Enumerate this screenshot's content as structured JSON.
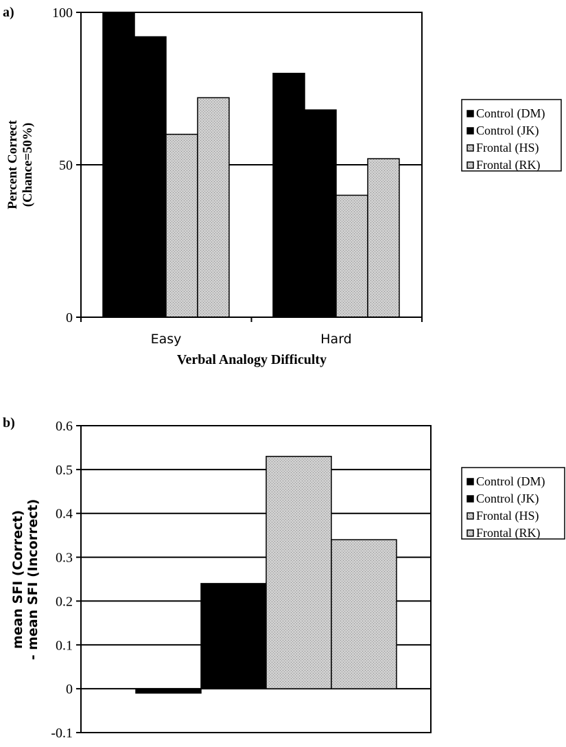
{
  "chart_data": [
    {
      "panel_label": "a)",
      "type": "bar",
      "categories": [
        "Easy",
        "Hard"
      ],
      "series": [
        {
          "name": "Control (DM)",
          "values": [
            100,
            80
          ]
        },
        {
          "name": "Control (JK)",
          "values": [
            92,
            68
          ]
        },
        {
          "name": "Frontal (HS)",
          "values": [
            60,
            40
          ]
        },
        {
          "name": "Frontal (RK)",
          "values": [
            72,
            52
          ]
        }
      ],
      "xlabel": "Verbal Analogy Difficulty",
      "ylabel_lines": [
        "Percent Correct",
        "(Chance=50%)"
      ],
      "ylim": [
        0,
        100
      ],
      "yticks": [
        "0",
        "50",
        "100"
      ],
      "gridlines": [
        50
      ],
      "legend_position": "right"
    },
    {
      "panel_label": "b)",
      "type": "bar",
      "categories": [
        ""
      ],
      "series": [
        {
          "name": "Control (DM)",
          "values": [
            -0.01
          ]
        },
        {
          "name": "Control (JK)",
          "values": [
            0.24
          ]
        },
        {
          "name": "Frontal (HS)",
          "values": [
            0.53
          ]
        },
        {
          "name": "Frontal (RK)",
          "values": [
            0.34
          ]
        }
      ],
      "xlabel": "",
      "ylabel_lines": [
        "mean SFI (Correct)",
        "- mean SFI (Incorrect)"
      ],
      "ylim": [
        -0.1,
        0.6
      ],
      "yticks": [
        "-0.1",
        "0",
        "0.1",
        "0.2",
        "0.3",
        "0.4",
        "0.5",
        "0.6"
      ],
      "gridlines": [
        0,
        0.1,
        0.2,
        0.3,
        0.4,
        0.5,
        0.6
      ],
      "legend_position": "right"
    }
  ],
  "colors": {
    "control": "#000000",
    "frontal": "#c8c8c8"
  }
}
